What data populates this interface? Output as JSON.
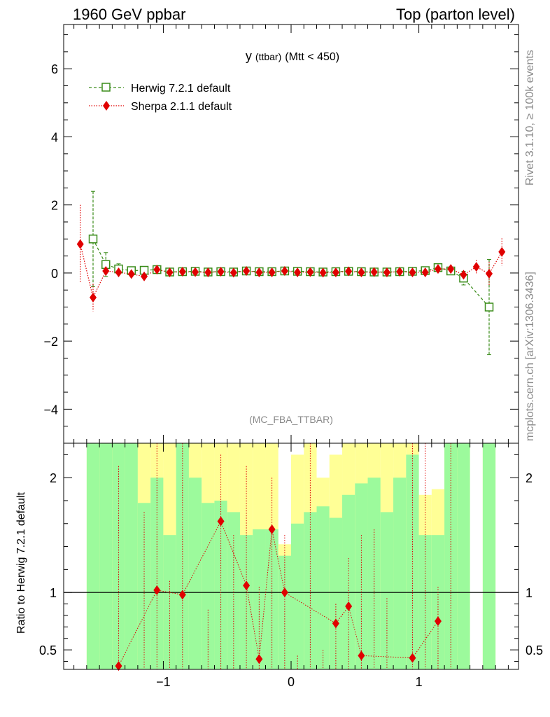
{
  "header": {
    "left": "1960 GeV ppbar",
    "right": "Top (parton level)"
  },
  "side": {
    "rivet": "Rivet 3.1.10, ≥ 100k events",
    "mcplots": "mcplots.cern.ch [arXiv:1306.3436]"
  },
  "chart_data": [
    {
      "type": "line",
      "panel": "main",
      "title_main": "y",
      "title_sub": "(ttbar)",
      "title_rest": "(Mtt < 450)",
      "watermark": "(MC_FBA_TTBAR)",
      "xlabel": "",
      "ylabel": "",
      "xlim": [
        -1.78,
        1.78
      ],
      "ylim": [
        -5.0,
        7.3
      ],
      "x_ticks": [
        -1,
        0,
        1
      ],
      "x_tick_labels": [
        "−1",
        "0",
        "1"
      ],
      "y_ticks": [
        -4,
        -2,
        0,
        2,
        4,
        6
      ],
      "y_tick_labels": [
        "−4",
        "−2",
        "0",
        "2",
        "4",
        "6"
      ],
      "legend_position": "top-left",
      "series": [
        {
          "name": "Herwig 7.2.1 default",
          "color": "#3a8c1a",
          "marker": "open-square",
          "x": [
            -1.55,
            -1.45,
            -1.35,
            -1.25,
            -1.15,
            -1.05,
            -0.95,
            -0.85,
            -0.75,
            -0.65,
            -0.55,
            -0.45,
            -0.35,
            -0.25,
            -0.15,
            -0.05,
            0.05,
            0.15,
            0.25,
            0.35,
            0.45,
            0.55,
            0.65,
            0.75,
            0.85,
            0.95,
            1.05,
            1.15,
            1.25,
            1.35,
            1.55
          ],
          "y": [
            1.0,
            0.25,
            0.12,
            0.07,
            0.08,
            0.1,
            0.03,
            0.04,
            0.05,
            0.03,
            0.04,
            0.03,
            0.06,
            0.04,
            0.04,
            0.06,
            0.05,
            0.04,
            0.03,
            0.04,
            0.05,
            0.04,
            0.03,
            0.03,
            0.04,
            0.05,
            0.07,
            0.16,
            0.06,
            -0.15,
            -1.0
          ],
          "err": [
            1.4,
            0.35,
            0.15,
            0.08,
            0.08,
            0.08,
            0.07,
            0.06,
            0.06,
            0.06,
            0.06,
            0.06,
            0.06,
            0.06,
            0.06,
            0.06,
            0.06,
            0.06,
            0.06,
            0.06,
            0.06,
            0.06,
            0.06,
            0.06,
            0.06,
            0.06,
            0.08,
            0.1,
            0.1,
            0.2,
            1.4
          ]
        },
        {
          "name": "Sherpa 2.1.1 default",
          "color": "#e00000",
          "marker": "filled-diamond",
          "x": [
            -1.65,
            -1.55,
            -1.45,
            -1.35,
            -1.25,
            -1.15,
            -1.05,
            -0.95,
            -0.85,
            -0.75,
            -0.65,
            -0.55,
            -0.45,
            -0.35,
            -0.25,
            -0.15,
            -0.05,
            0.05,
            0.15,
            0.25,
            0.35,
            0.45,
            0.55,
            0.65,
            0.75,
            0.85,
            0.95,
            1.05,
            1.15,
            1.25,
            1.35,
            1.45,
            1.55,
            1.65
          ],
          "y": [
            0.85,
            -0.72,
            0.06,
            0.02,
            -0.03,
            -0.1,
            0.1,
            0.02,
            0.04,
            0.03,
            0.02,
            0.04,
            0.01,
            0.06,
            0.02,
            0.02,
            0.06,
            0.02,
            0.03,
            0.01,
            0.02,
            0.05,
            0.02,
            0.03,
            0.02,
            0.04,
            0.02,
            0.02,
            0.12,
            0.12,
            -0.05,
            0.18,
            -0.02,
            0.62
          ]
        }
      ]
    },
    {
      "type": "line",
      "panel": "ratio",
      "ylabel": "Ratio to Herwig 7.2.1 default",
      "xlim": [
        -1.78,
        1.78
      ],
      "ylim": [
        0.33,
        2.3
      ],
      "y_ticks": [
        0.5,
        1,
        2
      ],
      "y_tick_labels": [
        "0.5",
        "1",
        "2"
      ],
      "reference_line": 1,
      "band_colors": {
        "inner": "#9cfa9c",
        "outer": "#ffff96"
      },
      "band_x": [
        -1.55,
        -1.45,
        -1.35,
        -1.25,
        -1.15,
        -1.05,
        -0.95,
        -0.85,
        -0.75,
        -0.65,
        -0.55,
        -0.45,
        -0.35,
        -0.25,
        -0.15,
        -0.05,
        0.05,
        0.15,
        0.25,
        0.35,
        0.45,
        0.55,
        0.65,
        0.75,
        0.85,
        0.95,
        1.05,
        1.15,
        1.25,
        1.35,
        1.55
      ],
      "band_inner_low": [
        0.33,
        0.33,
        0.33,
        0.33,
        0.33,
        0.33,
        0.33,
        0.33,
        0.33,
        0.33,
        0.33,
        0.33,
        0.33,
        0.33,
        0.33,
        0.33,
        0.33,
        0.33,
        0.33,
        0.33,
        0.33,
        0.33,
        0.33,
        0.33,
        0.33,
        0.33,
        0.33,
        0.33,
        0.33,
        0.33,
        0.33
      ],
      "band_inner_high": [
        2.3,
        2.3,
        2.3,
        2.3,
        1.78,
        2.0,
        1.5,
        2.3,
        2.0,
        1.78,
        1.8,
        1.7,
        1.5,
        1.55,
        1.55,
        1.32,
        1.6,
        1.7,
        1.75,
        1.65,
        1.85,
        1.95,
        2.0,
        1.7,
        2.0,
        2.2,
        1.5,
        1.5,
        2.3,
        2.3,
        2.3
      ],
      "band_outer_low": [
        0.33,
        0.33,
        0.33,
        0.33,
        0.33,
        0.33,
        0.33,
        0.33,
        0.33,
        0.33,
        0.33,
        0.33,
        0.33,
        0.33,
        0.33,
        0.33,
        0.33,
        0.33,
        0.33,
        0.33,
        0.33,
        0.33,
        0.33,
        0.33,
        0.33,
        0.33,
        0.33,
        0.33,
        0.33,
        0.33,
        0.33
      ],
      "band_outer_high": [
        2.3,
        2.3,
        2.3,
        2.3,
        2.3,
        2.3,
        2.3,
        2.3,
        2.3,
        2.3,
        2.3,
        2.3,
        2.3,
        2.3,
        2.3,
        1.42,
        2.2,
        2.3,
        2.0,
        2.2,
        2.3,
        2.3,
        2.3,
        2.3,
        2.3,
        2.3,
        1.85,
        1.9,
        2.3,
        2.3,
        2.3
      ],
      "series": [
        {
          "name": "Sherpa 2.1.1 default",
          "color": "#e00000",
          "marker": "filled-diamond",
          "x": [
            -1.35,
            -1.05,
            -0.85,
            -0.55,
            -0.35,
            -0.25,
            -0.15,
            -0.05,
            0.35,
            0.45,
            0.55,
            0.95,
            1.15
          ],
          "y": [
            0.36,
            1.02,
            0.98,
            1.62,
            1.06,
            0.42,
            1.55,
            1.0,
            0.73,
            0.88,
            0.45,
            0.43,
            0.75
          ]
        }
      ]
    }
  ]
}
